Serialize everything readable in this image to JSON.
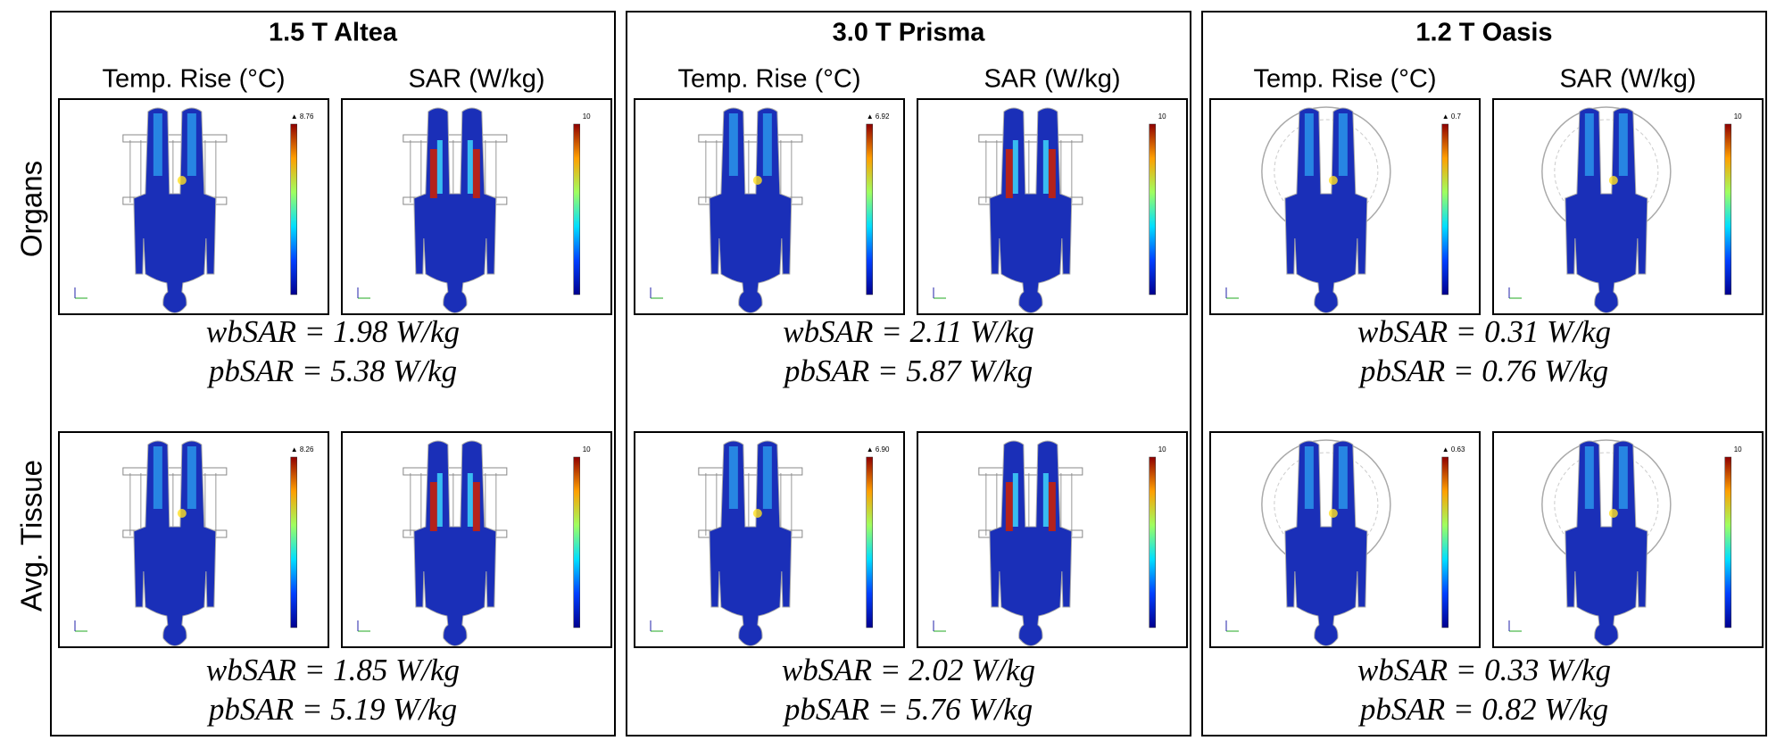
{
  "row_labels": [
    "Organs",
    "Avg. Tissue"
  ],
  "panels": [
    {
      "title": "1.5 T Altea",
      "column_headers": [
        "Temp. Rise (°C)",
        "SAR (W/kg)"
      ],
      "rows": [
        {
          "temp_max": "▲ 8.76",
          "sar_max": "10",
          "wbsar": "wbSAR = 1.98 W/kg",
          "pbsar": "pbSAR = 5.38 W/kg"
        },
        {
          "temp_max": "▲ 8.26",
          "sar_max": "10",
          "wbsar": "wbSAR = 1.85 W/kg",
          "pbsar": "pbSAR = 5.19 W/kg"
        }
      ]
    },
    {
      "title": "3.0 T Prisma",
      "column_headers": [
        "Temp. Rise (°C)",
        "SAR (W/kg)"
      ],
      "rows": [
        {
          "temp_max": "▲ 6.92",
          "sar_max": "10",
          "wbsar": "wbSAR = 2.11 W/kg",
          "pbsar": "pbSAR = 5.87 W/kg"
        },
        {
          "temp_max": "▲ 6.90",
          "sar_max": "10",
          "wbsar": "wbSAR = 2.02 W/kg",
          "pbsar": "pbSAR = 5.76 W/kg"
        }
      ]
    },
    {
      "title": "1.2 T Oasis",
      "column_headers": [
        "Temp. Rise (°C)",
        "SAR (W/kg)"
      ],
      "rows": [
        {
          "temp_max": "▲ 0.7",
          "sar_max": "10",
          "wbsar": "wbSAR = 0.31 W/kg",
          "pbsar": "pbSAR = 0.76 W/kg"
        },
        {
          "temp_max": "▲ 0.63",
          "sar_max": "10",
          "wbsar": "wbSAR = 0.33 W/kg",
          "pbsar": "pbSAR = 0.82 W/kg"
        }
      ]
    }
  ]
}
